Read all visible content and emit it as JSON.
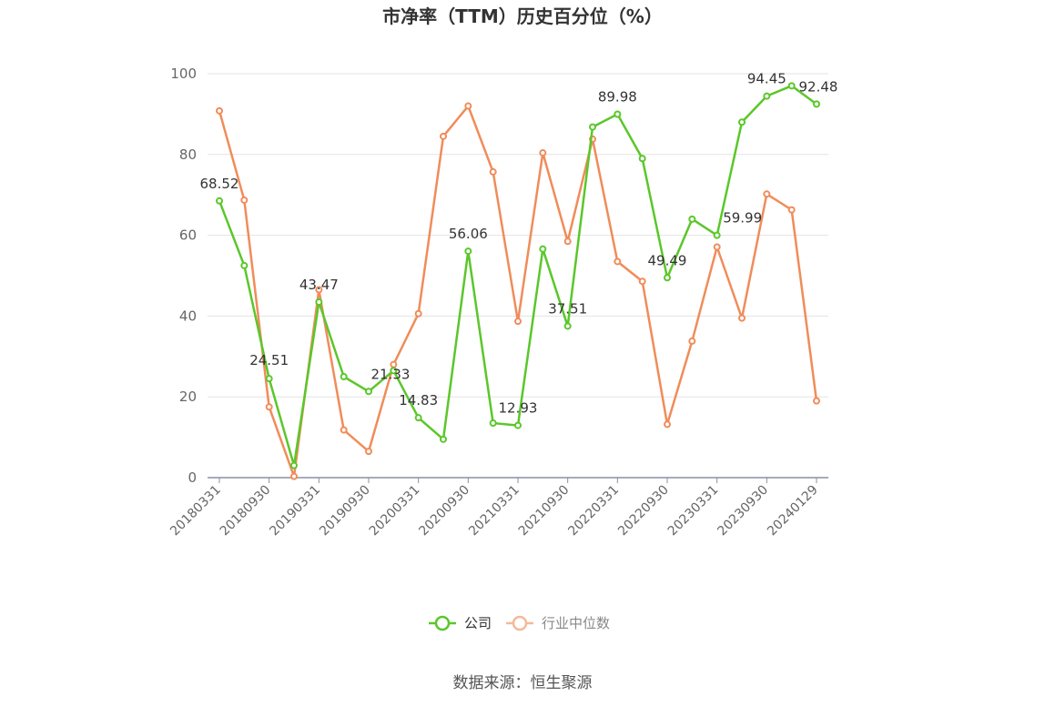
{
  "chart_data": {
    "type": "line",
    "title": "市净率（TTM）历史百分位（%）",
    "x_tick_labels": [
      "20180331",
      "20180930",
      "20190331",
      "20190930",
      "20200331",
      "20200930",
      "20210331",
      "20210930",
      "20220331",
      "20220930",
      "20230331",
      "20230930",
      "20240129"
    ],
    "ylim": [
      0,
      100
    ],
    "yticks": [
      0,
      20,
      40,
      60,
      80,
      100
    ],
    "grid": true,
    "legend_position": "bottom-center",
    "series": [
      {
        "name": "公司",
        "color": "#5ac72a",
        "values": [
          68.52,
          52.5,
          24.51,
          3.0,
          43.47,
          25.0,
          21.33,
          26.5,
          14.83,
          9.5,
          56.06,
          13.5,
          12.93,
          56.6,
          37.51,
          86.8,
          89.98,
          79.0,
          49.49,
          64.0,
          59.99,
          88.0,
          94.45,
          97.0,
          92.48
        ],
        "labels": [
          "68.52",
          "",
          "24.51",
          "",
          "43.47",
          "",
          "21.33",
          "",
          "14.83",
          "",
          "56.06",
          "",
          "12.93",
          "",
          "37.51",
          "",
          "89.98",
          "",
          "49.49",
          "",
          "59.99",
          "",
          "94.45",
          "",
          "92.48"
        ]
      },
      {
        "name": "行业中位数",
        "color": "#f08c5a",
        "values": [
          90.8,
          68.7,
          17.5,
          0.3,
          46.5,
          11.8,
          6.5,
          28.0,
          40.6,
          84.5,
          92.0,
          75.7,
          38.7,
          80.4,
          58.5,
          83.8,
          53.5,
          48.6,
          13.2,
          33.8,
          57.1,
          39.5,
          70.2,
          66.3,
          19.0
        ]
      }
    ]
  },
  "source": "数据来源：恒生聚源"
}
